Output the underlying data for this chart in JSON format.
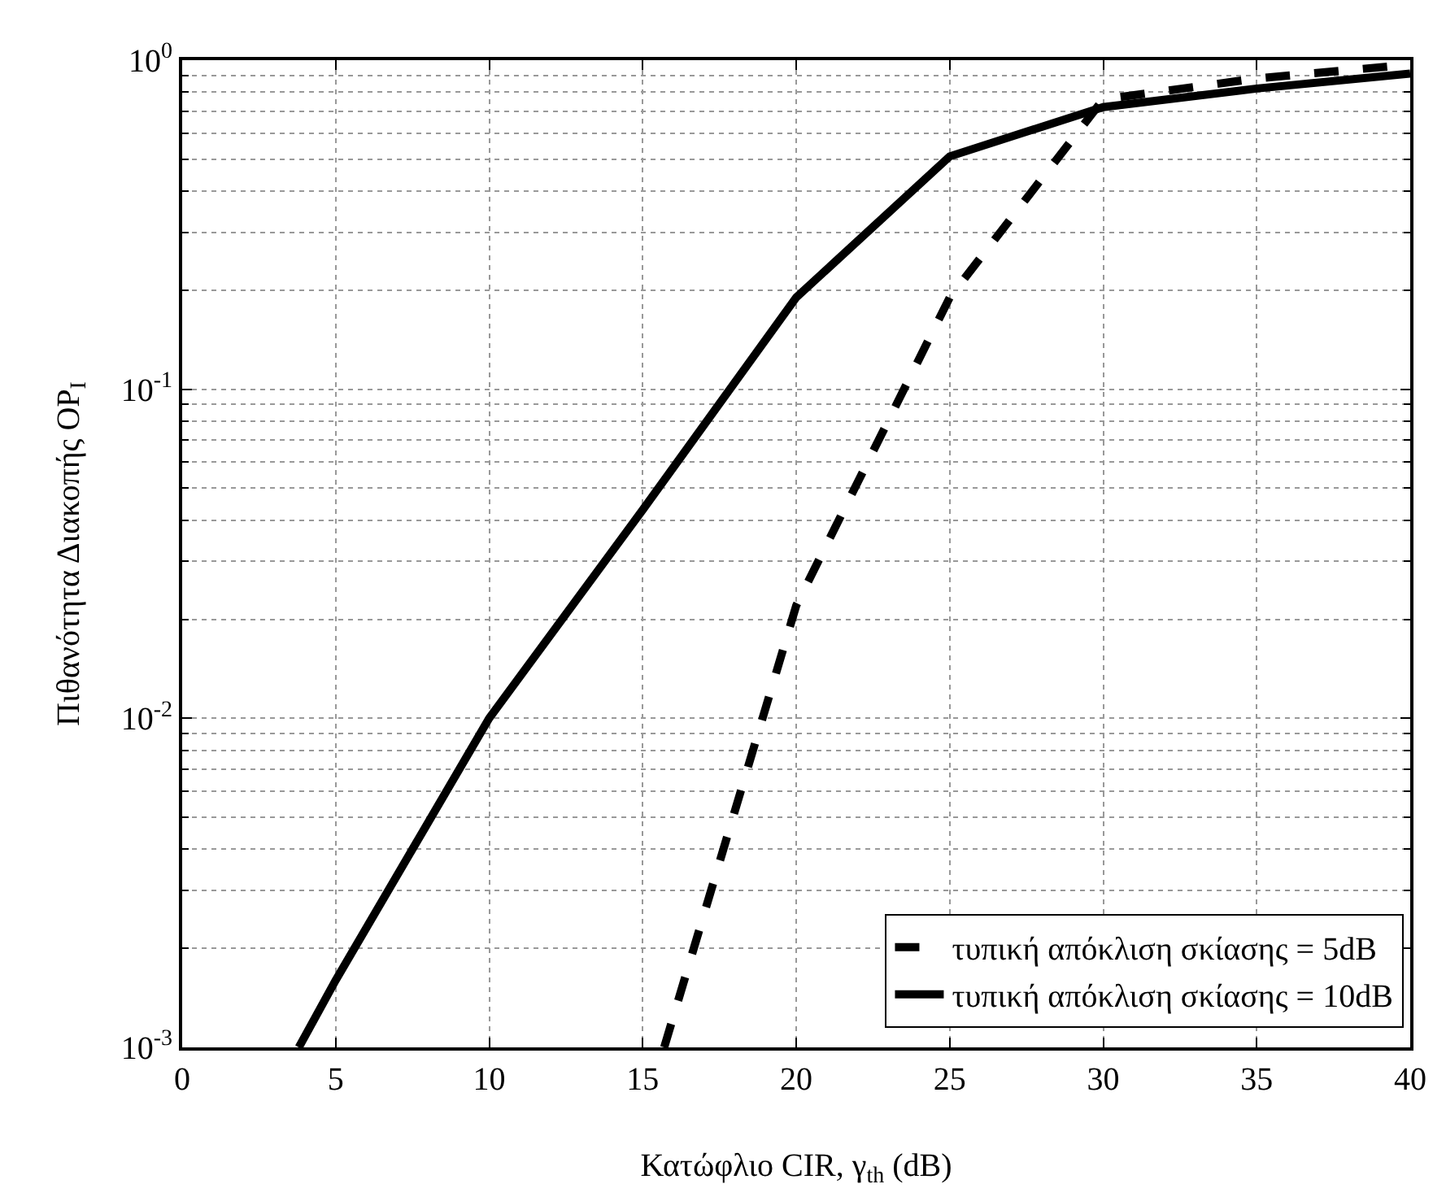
{
  "chart_data": {
    "type": "line",
    "xlabel": "Κατώφλιο CIR, γ$_{th}$ (dB)",
    "ylabel": "Πιθανότητα Διακοπής OP$_{I}$",
    "series": [
      {
        "name": "τυπική απόκλιση σκίασης = 5dB",
        "color": "#000000",
        "line_style": "dashed",
        "x": [
          15.7,
          20,
          25,
          30,
          35,
          40
        ],
        "values": [
          0.001,
          0.022,
          0.19,
          0.76,
          0.88,
          0.97
        ]
      },
      {
        "name": "τυπική απόκλιση σκίασης = 10dB",
        "color": "#000000",
        "line_style": "solid",
        "x": [
          3.8,
          5,
          10,
          15,
          20,
          25,
          30,
          35,
          40
        ],
        "values": [
          0.001,
          0.0016,
          0.01,
          0.043,
          0.19,
          0.51,
          0.72,
          0.82,
          0.91
        ]
      }
    ],
    "xlim": [
      0,
      40
    ],
    "xticks": [
      0,
      5,
      10,
      15,
      20,
      25,
      30,
      35,
      40
    ],
    "ylim": [
      0.001,
      1
    ],
    "yticks": [
      {
        "value": 0.001,
        "label": "10$^{-3}$"
      },
      {
        "value": 0.01,
        "label": "10$^{-2}$"
      },
      {
        "value": 0.1,
        "label": "10$^{-1}$"
      },
      {
        "value": 1,
        "label": "10$^{0}$"
      }
    ],
    "log": "y",
    "grid": true,
    "legend": "bottom right",
    "marker": "none"
  }
}
